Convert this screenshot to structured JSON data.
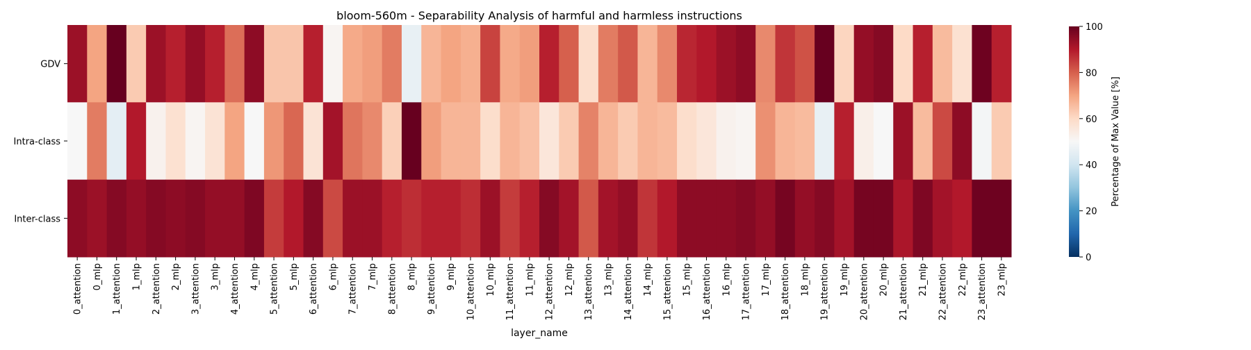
{
  "chart_data": {
    "type": "heatmap",
    "title": "bloom-560m - Separability Analysis of harmful and harmless instructions",
    "xlabel": "layer_name",
    "ylabel": "",
    "colorbar_label": "Percentage of Max Value [%]",
    "colorbar_range": [
      0,
      100
    ],
    "colorbar_ticks": [
      0,
      20,
      40,
      60,
      80,
      100
    ],
    "colormap": "RdBu_r",
    "colormap_stops": [
      "#053061",
      "#2166ac",
      "#4393c3",
      "#92c5de",
      "#d1e5f0",
      "#f7f7f7",
      "#fddbc7",
      "#f4a582",
      "#d6604d",
      "#b2182b",
      "#67001f"
    ],
    "rows": [
      "GDV",
      "Intra-class",
      "Inter-class"
    ],
    "columns": [
      "0_attention",
      "0_mlp",
      "1_attention",
      "1_mlp",
      "2_attention",
      "2_mlp",
      "3_attention",
      "3_mlp",
      "4_attention",
      "4_mlp",
      "5_attention",
      "5_mlp",
      "6_attention",
      "6_mlp",
      "7_attention",
      "7_mlp",
      "8_attention",
      "8_mlp",
      "9_attention",
      "9_mlp",
      "10_attention",
      "10_mlp",
      "11_attention",
      "11_mlp",
      "12_attention",
      "12_mlp",
      "13_attention",
      "13_mlp",
      "14_attention",
      "14_mlp",
      "15_attention",
      "15_mlp",
      "16_attention",
      "16_mlp",
      "17_attention",
      "17_mlp",
      "18_attention",
      "18_mlp",
      "19_attention",
      "19_mlp",
      "20_attention",
      "20_mlp",
      "21_attention",
      "21_mlp",
      "22_attention",
      "22_mlp",
      "23_attention",
      "23_mlp"
    ],
    "values": [
      [
        93,
        70,
        100,
        63,
        93,
        89,
        94,
        89,
        78,
        95,
        64,
        64,
        89,
        51,
        69,
        71,
        76,
        46,
        67,
        70,
        68,
        84,
        69,
        71,
        89,
        80,
        59,
        76,
        81,
        67,
        74,
        88,
        90,
        93,
        95,
        74,
        86,
        82,
        100,
        61,
        94,
        96,
        60,
        89,
        66,
        58,
        99,
        89
      ],
      [
        50,
        76,
        45,
        90,
        52,
        58,
        51,
        57,
        70,
        50,
        72,
        79,
        57,
        92,
        77,
        74,
        62,
        100,
        71,
        67,
        67,
        59,
        67,
        65,
        56,
        63,
        75,
        67,
        63,
        67,
        66,
        59,
        56,
        52,
        51,
        73,
        67,
        66,
        46,
        89,
        53,
        50,
        93,
        66,
        83,
        95,
        49,
        63
      ],
      [
        95,
        93,
        96,
        94,
        96,
        95,
        96,
        94,
        94,
        97,
        85,
        90,
        96,
        83,
        93,
        93,
        89,
        87,
        89,
        89,
        87,
        93,
        85,
        89,
        96,
        92,
        81,
        92,
        94,
        86,
        90,
        95,
        95,
        95,
        96,
        94,
        98,
        94,
        96,
        92,
        98,
        98,
        91,
        97,
        92,
        90,
        99,
        99
      ]
    ]
  }
}
